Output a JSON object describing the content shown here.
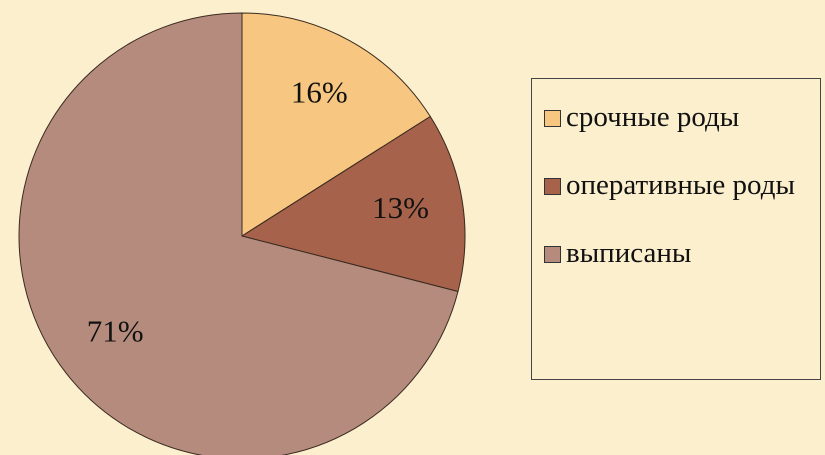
{
  "chart_data": {
    "type": "pie",
    "categories": [
      "срочные роды",
      "оперативные роды",
      "выписаны"
    ],
    "values": [
      16,
      13,
      71
    ],
    "value_labels": [
      "16%",
      "13%",
      "71%"
    ],
    "colors": [
      "#f7c781",
      "#a6624b",
      "#b58b7e"
    ],
    "legend": "right"
  }
}
